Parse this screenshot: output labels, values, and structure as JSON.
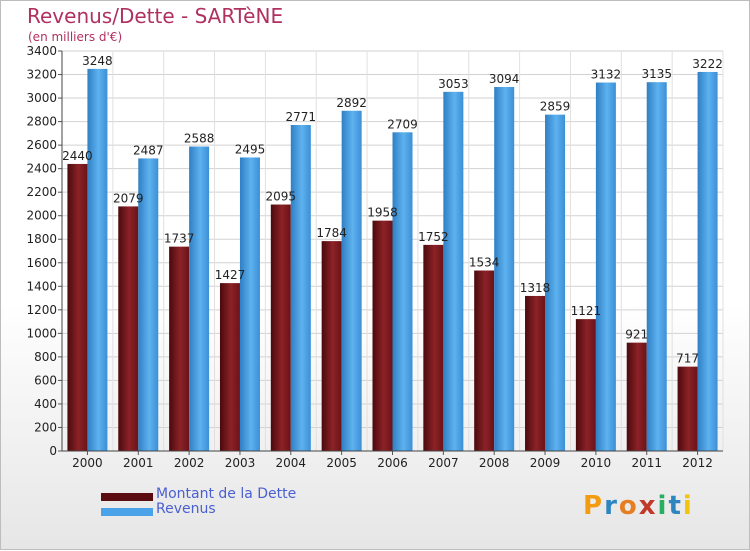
{
  "header": {
    "title": "Revenus/Dette - SARTèNE",
    "subtitle": "(en milliers d'€)"
  },
  "chart_data": {
    "type": "bar",
    "title": "Revenus/Dette - SARTèNE",
    "subtitle": "(en milliers d'€)",
    "xlabel": "",
    "ylabel": "",
    "categories": [
      "2000",
      "2001",
      "2002",
      "2003",
      "2004",
      "2005",
      "2006",
      "2007",
      "2008",
      "2009",
      "2010",
      "2011",
      "2012"
    ],
    "series": [
      {
        "name": "Montant de la Dette",
        "color": "#7b1a1f",
        "values": [
          2440,
          2079,
          1737,
          1427,
          2095,
          1784,
          1958,
          1752,
          1534,
          1318,
          1121,
          921,
          717
        ]
      },
      {
        "name": "Revenus",
        "color": "#4aa3e8",
        "values": [
          3248,
          2487,
          2588,
          2495,
          2771,
          2892,
          2709,
          3053,
          3094,
          2859,
          3132,
          3135,
          3222
        ]
      }
    ],
    "ylim": [
      0,
      3400
    ],
    "yticks": [
      0,
      200,
      400,
      600,
      800,
      1000,
      1200,
      1400,
      1600,
      1800,
      2000,
      2200,
      2400,
      2600,
      2800,
      3000,
      3200,
      3400
    ],
    "grid": true,
    "legend": "bottom-left"
  },
  "legend": {
    "items": [
      {
        "label": "Montant de la Dette",
        "color": "#7b1a1f"
      },
      {
        "label": "Revenus",
        "color": "#4aa3e8"
      }
    ]
  },
  "brand": {
    "letters": [
      "P",
      "r",
      "o",
      "x",
      "i",
      "t",
      "i"
    ]
  }
}
